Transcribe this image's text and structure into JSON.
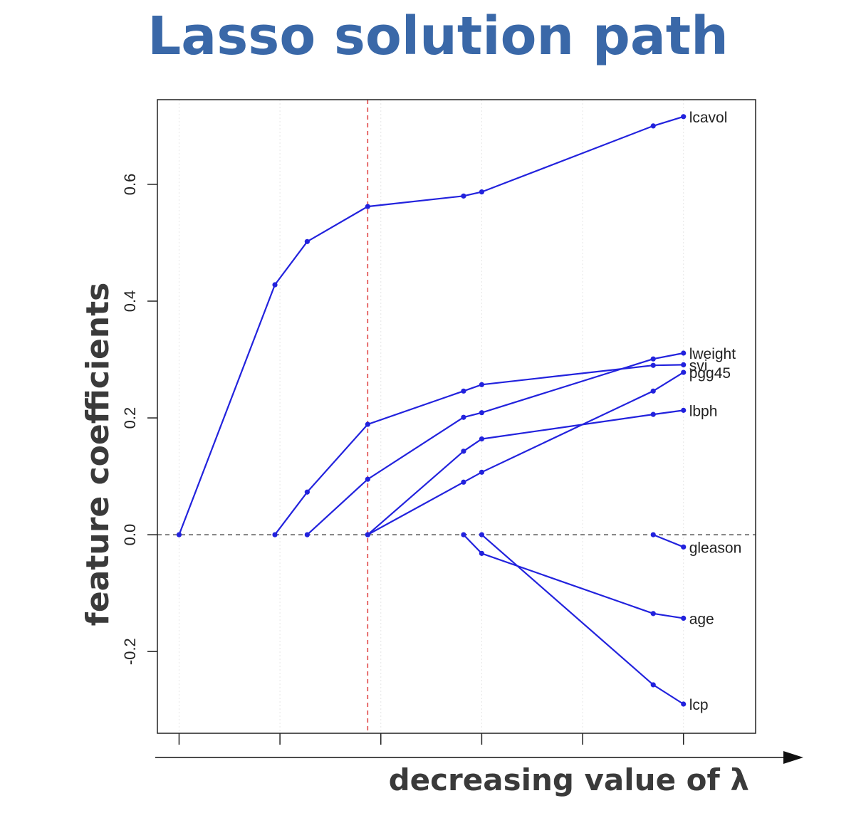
{
  "chart_data": {
    "type": "line",
    "title": "Lasso solution path",
    "xlabel": "decreasing value of λ",
    "ylabel": "feature coefficients",
    "x_ticks": [
      1,
      2,
      3,
      4,
      5,
      6
    ],
    "y_ticks": [
      "-0.2",
      "0.0",
      "0.2",
      "0.4",
      "0.6"
    ],
    "xlim": [
      0.785,
      6.715
    ],
    "ylim": [
      -0.34,
      0.745
    ],
    "grid": true,
    "zero_line": 0.0,
    "selected_lambda_x": 2.87,
    "series": [
      {
        "name": "lcavol",
        "points": [
          [
            1,
            0
          ],
          [
            1.95,
            0.428
          ],
          [
            2.27,
            0.502
          ],
          [
            2.87,
            0.562
          ],
          [
            3.82,
            0.58
          ],
          [
            4.0,
            0.587
          ],
          [
            5.7,
            0.7
          ],
          [
            6.0,
            0.716
          ]
        ]
      },
      {
        "name": "svi",
        "points": [
          [
            1.95,
            0
          ],
          [
            2.27,
            0.073
          ],
          [
            2.87,
            0.189
          ],
          [
            3.82,
            0.246
          ],
          [
            4.0,
            0.257
          ],
          [
            5.7,
            0.29
          ],
          [
            6.0,
            0.291
          ]
        ]
      },
      {
        "name": "lweight",
        "points": [
          [
            2.27,
            0
          ],
          [
            2.87,
            0.095
          ],
          [
            3.82,
            0.201
          ],
          [
            4.0,
            0.209
          ],
          [
            5.7,
            0.301
          ],
          [
            6.0,
            0.311
          ]
        ]
      },
      {
        "name": "pgg45",
        "points": [
          [
            2.87,
            0
          ],
          [
            3.82,
            0.09
          ],
          [
            4.0,
            0.107
          ],
          [
            5.7,
            0.246
          ],
          [
            6.0,
            0.278
          ]
        ]
      },
      {
        "name": "lbph",
        "points": [
          [
            2.87,
            0
          ],
          [
            3.82,
            0.143
          ],
          [
            4.0,
            0.164
          ],
          [
            5.7,
            0.206
          ],
          [
            6.0,
            0.213
          ]
        ]
      },
      {
        "name": "gleason",
        "points": [
          [
            5.7,
            0
          ],
          [
            6.0,
            -0.021
          ]
        ]
      },
      {
        "name": "age",
        "points": [
          [
            3.82,
            0
          ],
          [
            4.0,
            -0.032
          ],
          [
            5.7,
            -0.135
          ],
          [
            6.0,
            -0.143
          ]
        ]
      },
      {
        "name": "lcp",
        "points": [
          [
            4.0,
            0
          ],
          [
            5.7,
            -0.257
          ],
          [
            6.0,
            -0.29
          ]
        ]
      }
    ],
    "colors": {
      "line": "#2222dd",
      "title": "#3a68a8",
      "selected_line": "#e04040",
      "zero_line": "#555555",
      "grid": "#e6e6e6"
    }
  }
}
